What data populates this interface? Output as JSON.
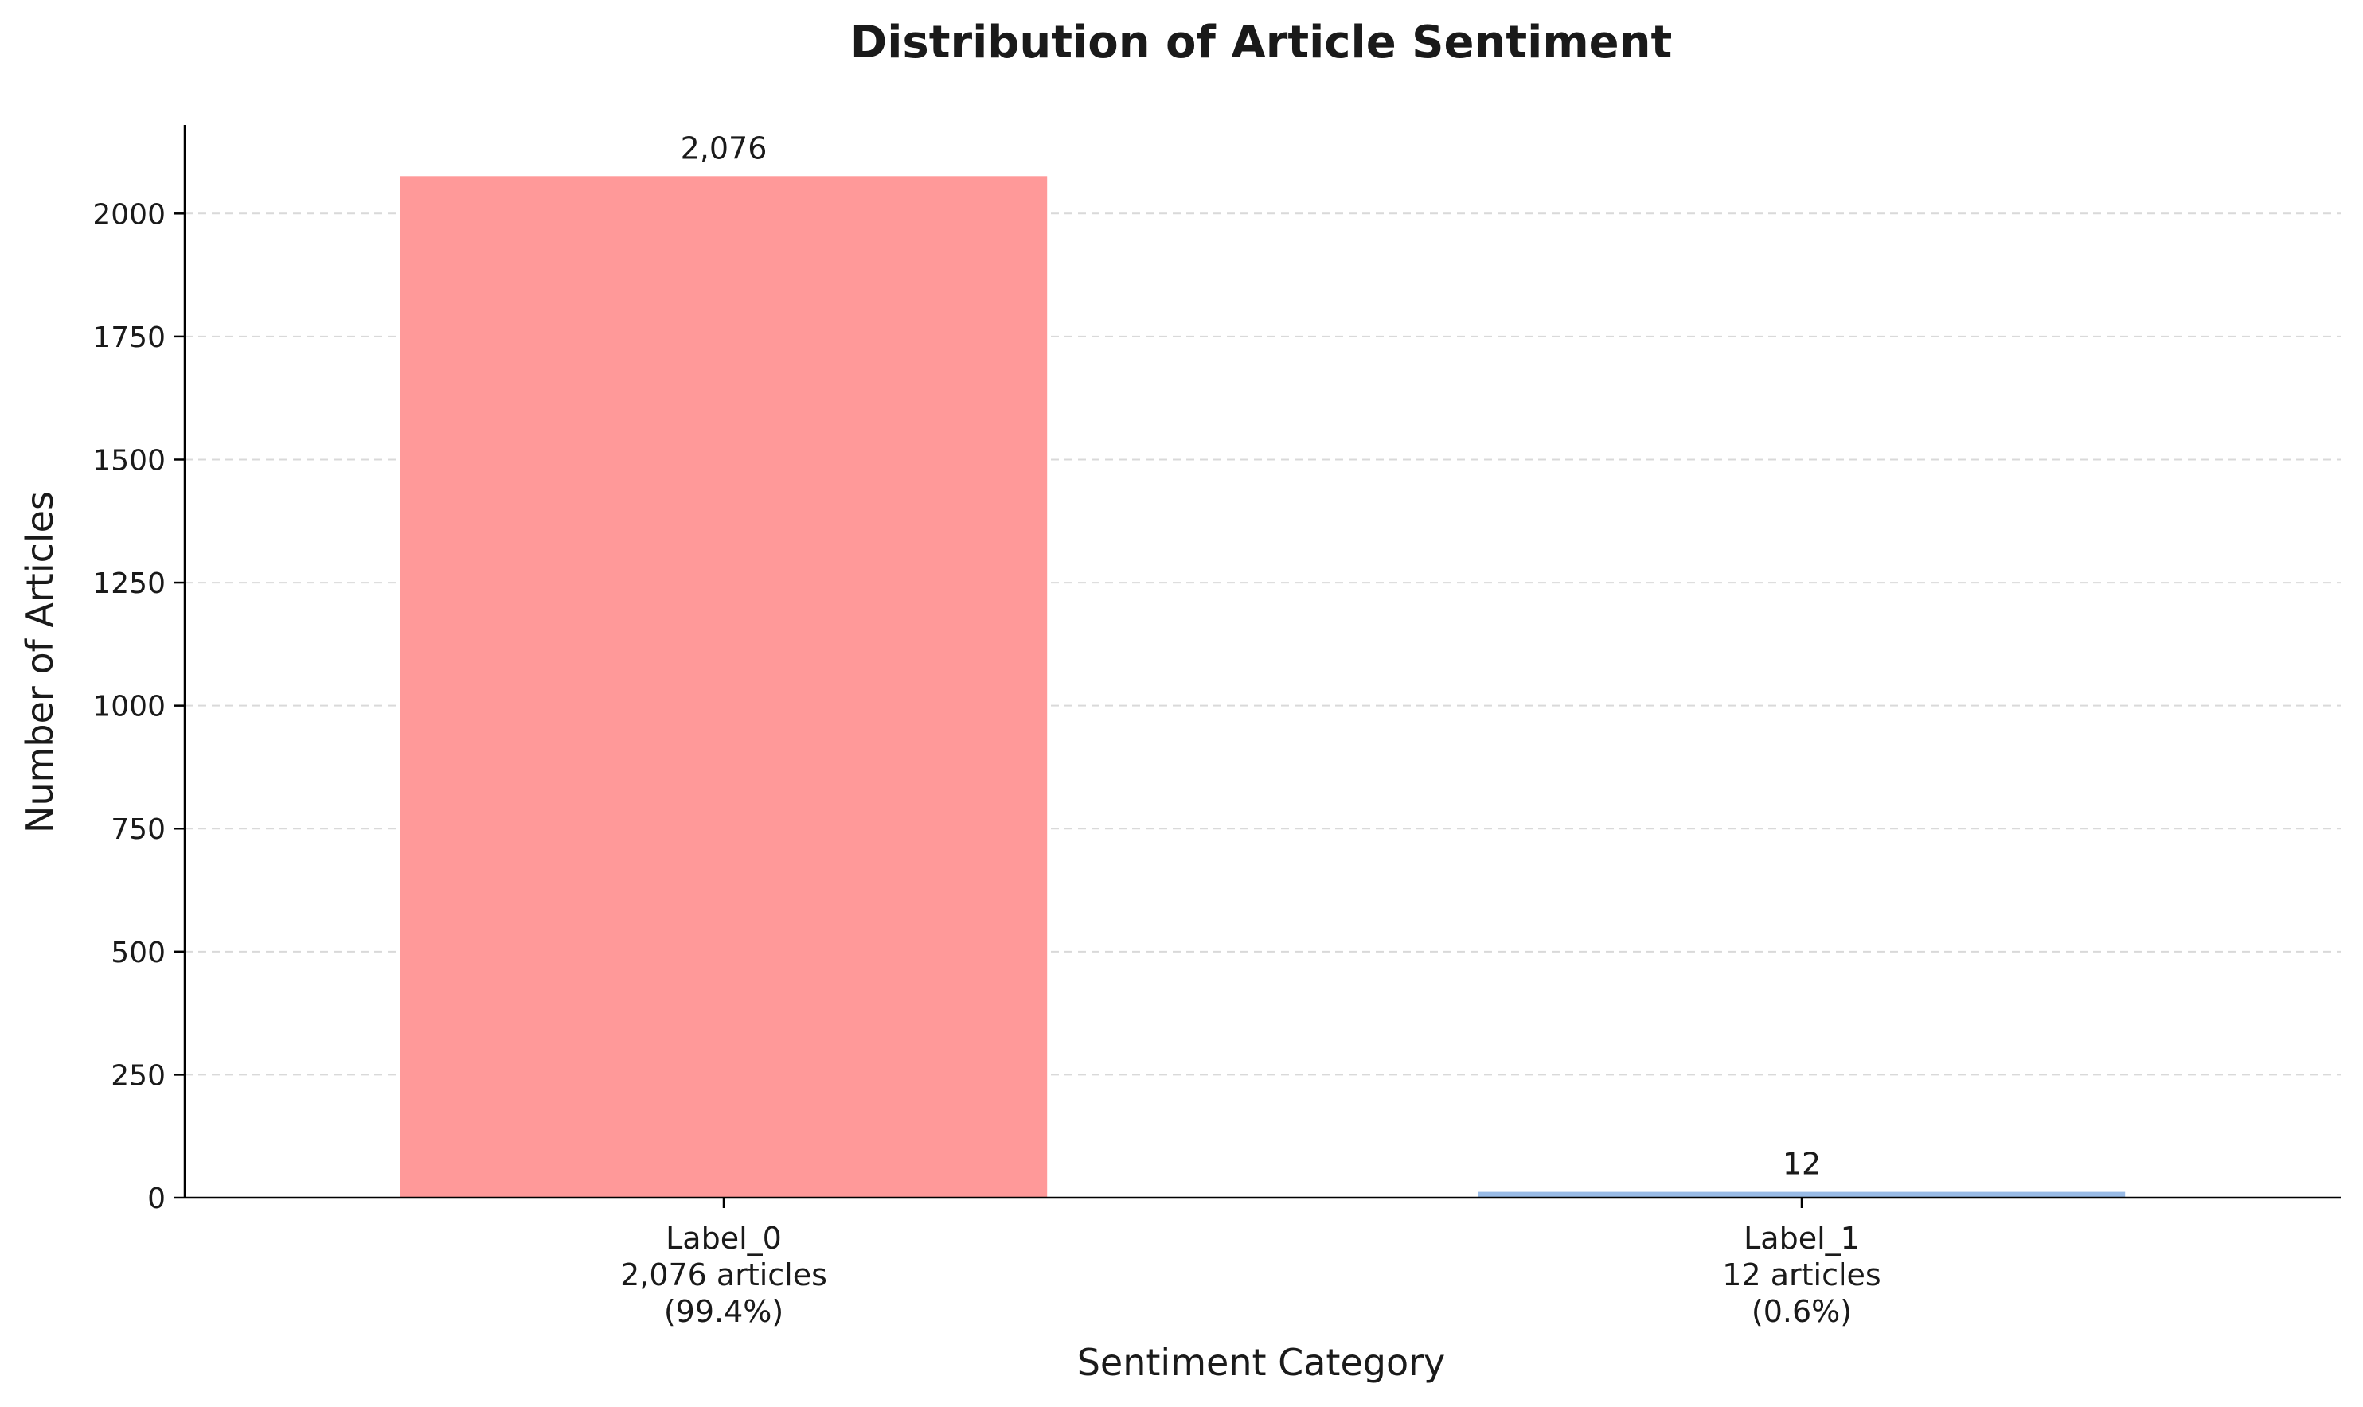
{
  "chart_data": {
    "type": "bar",
    "title": "Distribution of Article Sentiment",
    "xlabel": "Sentiment Category",
    "ylabel": "Number of Articles",
    "ylim": [
      0,
      2180
    ],
    "yticks": [
      0,
      250,
      500,
      750,
      1000,
      1250,
      1500,
      1750,
      2000
    ],
    "grid": "y-axis dashed",
    "legend": "none",
    "categories": [
      "Label_0",
      "Label_1"
    ],
    "values": [
      2076,
      12
    ],
    "value_labels": [
      "2,076",
      "12"
    ],
    "category_details": [
      [
        "Label_0",
        "2,076 articles",
        "(99.4%)"
      ],
      [
        "Label_1",
        "12 articles",
        "(0.6%)"
      ]
    ],
    "colors": [
      "#ff9999",
      "#99bbe6"
    ]
  }
}
